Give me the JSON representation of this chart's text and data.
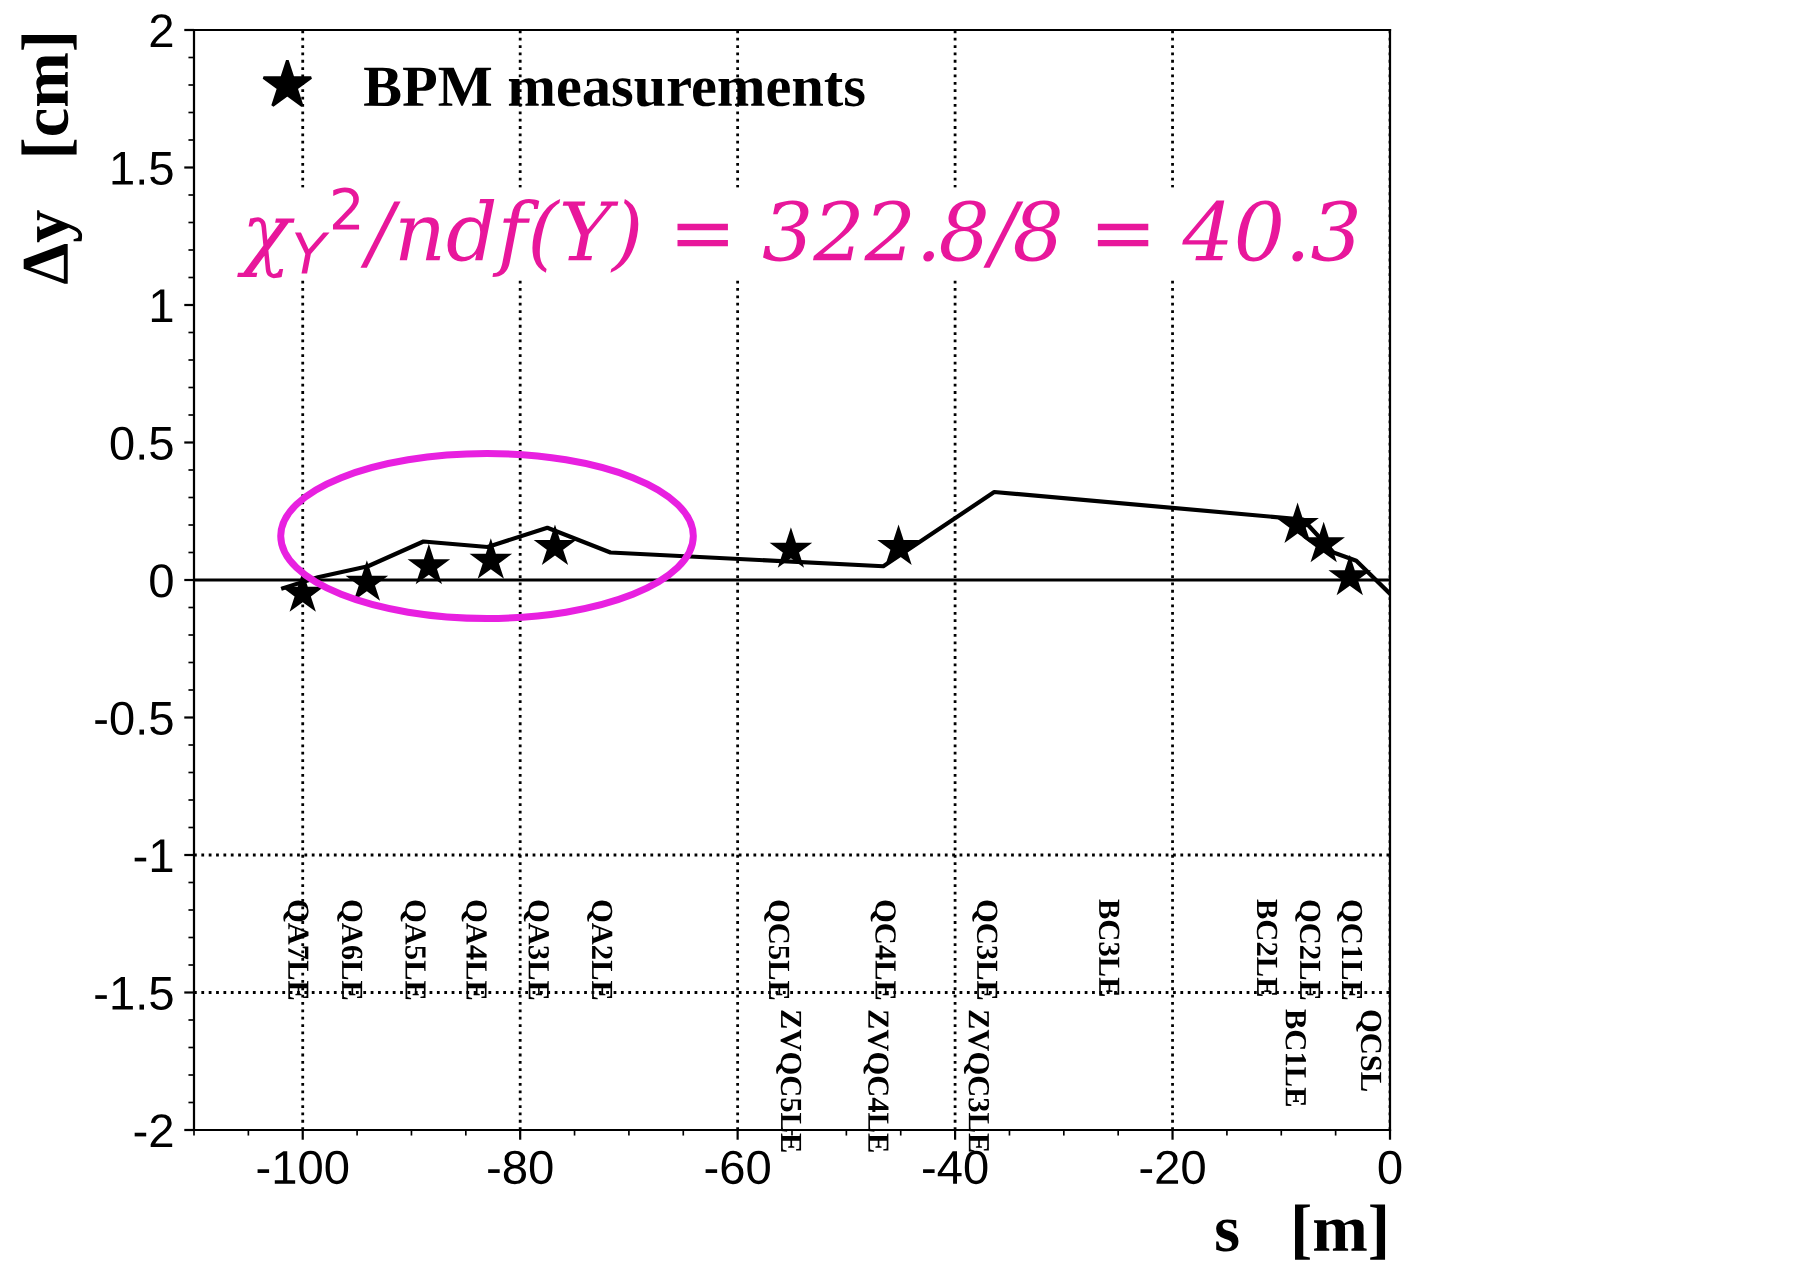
{
  "chart_data": {
    "type": "scatter",
    "xlabel": "s   [m]",
    "ylabel": "Δy   [cm]",
    "xlim": [
      -110,
      0
    ],
    "ylim": [
      -2,
      2
    ],
    "xticks": [
      -100,
      -80,
      -60,
      -40,
      -20,
      0
    ],
    "yticks": [
      -2,
      -1.5,
      -1,
      -0.5,
      0,
      0.5,
      1,
      1.5,
      2
    ],
    "grid": "x",
    "legend": "top left",
    "series": [
      {
        "type": "line",
        "color": "#000000",
        "marker": "none",
        "line_style": "solid",
        "x": [
          -101.8,
          -98.6,
          -94.0,
          -88.9,
          -83.0,
          -77.5,
          -71.7,
          -46.6,
          -36.4,
          -8.0,
          -5.2,
          -3.1,
          0
        ],
        "values": [
          -0.03,
          0.01,
          0.05,
          0.14,
          0.12,
          0.19,
          0.1,
          0.05,
          0.32,
          0.22,
          0.1,
          0.07,
          -0.05
        ]
      },
      {
        "name": "BPM measurements",
        "color": "#000000",
        "marker": "star",
        "x": [
          -100.0,
          -94.1,
          -88.4,
          -82.7,
          -76.8,
          -55.1,
          -45.2,
          -8.5,
          -6.1,
          -3.7
        ],
        "values": [
          -0.05,
          -0.01,
          0.05,
          0.07,
          0.12,
          0.11,
          0.12,
          0.2,
          0.13,
          0.01
        ]
      }
    ],
    "ref_lines": [
      {
        "axis": "y",
        "value": 0,
        "color": "#000000",
        "line_style": "solid"
      },
      {
        "axis": "y",
        "value": -1,
        "color": "#000000",
        "line_style": "dotted"
      },
      {
        "axis": "y",
        "value": -1.5,
        "color": "#000000",
        "line_style": "dotted"
      }
    ],
    "annotations": [
      "χ$_{Y}$$^{2}$/ndf(Y) = 322.8/8 = 40.3",
      "QA7LE",
      "QA6LE",
      "QA5LE",
      "QA4LE",
      "QA3LE",
      "QA2LE",
      "QC5LE",
      "QC4LE",
      "QC3LE",
      "BC3LE",
      "BC2LE",
      "QC2LE",
      "QC1LE",
      "ZVQC5LE",
      "ZVQC4LE",
      "ZVQC3LE",
      "BC1LE",
      "QCSL"
    ]
  }
}
